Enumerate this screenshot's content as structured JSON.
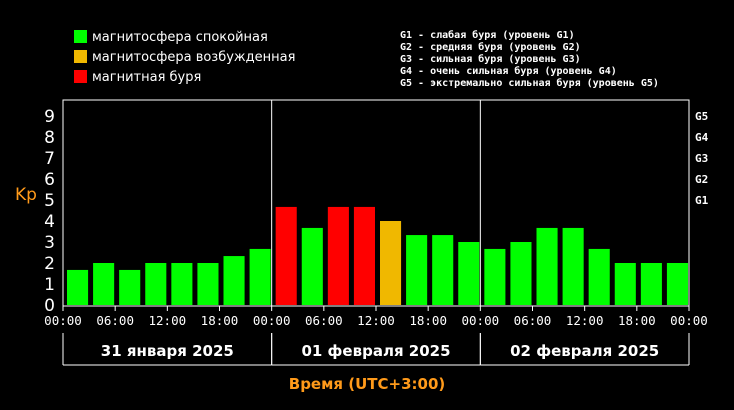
{
  "legend": {
    "items": [
      {
        "label": "магнитосфера спокойная",
        "color": "#00ff00"
      },
      {
        "label": "магнитосфера возбужденная",
        "color": "#f0b800"
      },
      {
        "label": "магнитная буря",
        "color": "#ff0000"
      }
    ],
    "g_scale": [
      "G1 - слабая буря (уровень G1)",
      "G2 - средняя буря (уровень G2)",
      "G3 - сильная буря (уровень G3)",
      "G4 - очень сильная буря (уровень G4)",
      "G5 - экстремально сильная буря (уровень G5)"
    ]
  },
  "chart_data": {
    "type": "bar",
    "ylabel": "Kp",
    "xlabel": "Время (UTC+3:00)",
    "ylim": [
      0,
      9
    ],
    "yticks": [
      "0",
      "1",
      "2",
      "3",
      "4",
      "5",
      "6",
      "7",
      "8",
      "9"
    ],
    "g_levels": [
      {
        "label": "G1",
        "value": 5
      },
      {
        "label": "G2",
        "value": 6
      },
      {
        "label": "G3",
        "value": 7
      },
      {
        "label": "G4",
        "value": 8
      },
      {
        "label": "G5",
        "value": 9
      }
    ],
    "days": [
      "31 января 2025",
      "01 февраля 2025",
      "02 февраля 2025"
    ],
    "xticks": [
      "00:00",
      "06:00",
      "12:00",
      "18:00",
      "00:00",
      "06:00",
      "12:00",
      "18:00",
      "00:00",
      "06:00",
      "12:00",
      "18:00",
      "00:00"
    ],
    "values": [
      1.67,
      2,
      1.67,
      2,
      2,
      2,
      2.33,
      2.67,
      4.67,
      3.67,
      4.67,
      4.67,
      4,
      3.33,
      3.33,
      3,
      2.67,
      3,
      3.67,
      3.67,
      2.67,
      2,
      2,
      2
    ],
    "colors": {
      "quiet": "#00ff00",
      "active": "#f0b800",
      "storm": "#ff0000"
    }
  }
}
